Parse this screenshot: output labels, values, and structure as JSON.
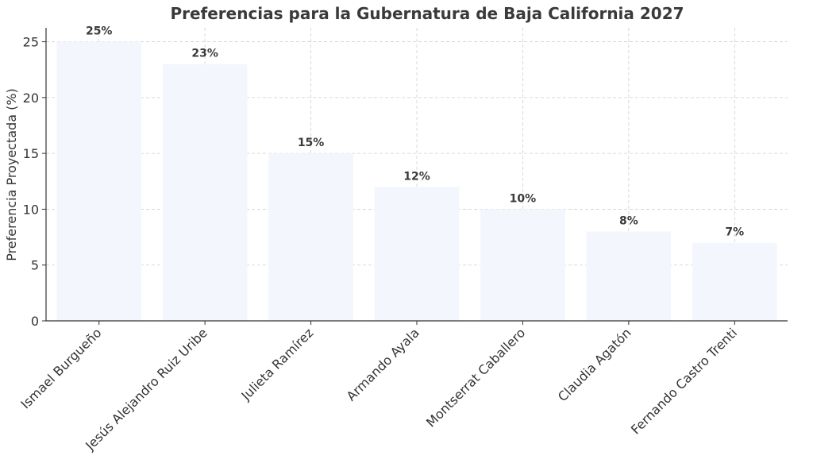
{
  "chart_data": {
    "type": "bar",
    "title": "Preferencias para la Gubernatura de Baja California 2027",
    "xlabel": "",
    "ylabel": "Preferencia Proyectada (%)",
    "categories": [
      "Ismael Burgueño",
      "Jesús Alejandro Ruiz Uribe",
      "Julieta Ramírez",
      "Armando Ayala",
      "Montserrat Caballero",
      "Claudia Agatón",
      "Fernando Castro Trenti"
    ],
    "values": [
      25,
      23,
      15,
      12,
      10,
      8,
      7
    ],
    "data_labels": [
      "25%",
      "23%",
      "15%",
      "12%",
      "10%",
      "8%",
      "7%"
    ],
    "yticks": [
      0,
      5,
      10,
      15,
      20,
      25
    ],
    "ylim": [
      0,
      26.25
    ],
    "grid": true,
    "bar_color": "#f3f7fd"
  }
}
